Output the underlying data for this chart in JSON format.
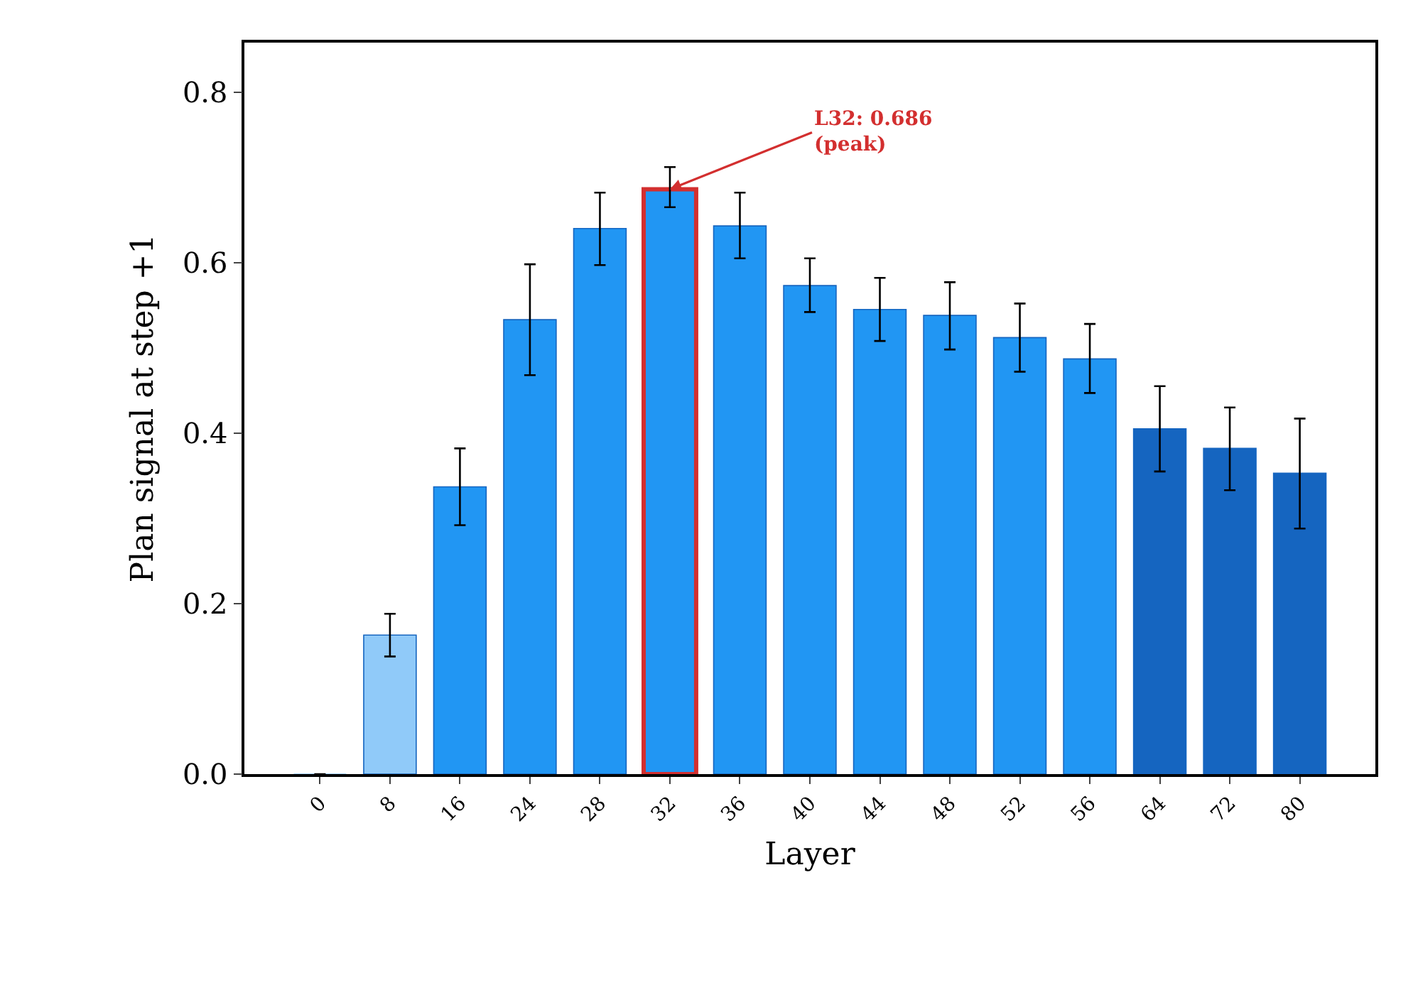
{
  "chart_data": {
    "type": "bar",
    "xlabel": "Layer",
    "ylabel": "Plan signal at step +1",
    "categories": [
      "0",
      "8",
      "16",
      "24",
      "28",
      "32",
      "36",
      "40",
      "44",
      "48",
      "52",
      "56",
      "64",
      "72",
      "80"
    ],
    "values": [
      0.0,
      0.163,
      0.337,
      0.533,
      0.64,
      0.686,
      0.643,
      0.573,
      0.545,
      0.538,
      0.512,
      0.487,
      0.405,
      0.382,
      0.353
    ],
    "colors": [
      "#90caf9",
      "#90caf9",
      "#2196f3",
      "#2196f3",
      "#2196f3",
      "#2196f3",
      "#2196f3",
      "#2196f3",
      "#2196f3",
      "#2196f3",
      "#2196f3",
      "#2196f3",
      "#1565c0",
      "#1565c0",
      "#1565c0"
    ],
    "errors": [
      null,
      [
        0.138,
        0.188
      ],
      [
        0.292,
        0.382
      ],
      [
        0.468,
        0.598
      ],
      [
        0.597,
        0.682
      ],
      [
        0.665,
        0.712
      ],
      [
        0.605,
        0.682
      ],
      [
        0.542,
        0.605
      ],
      [
        0.508,
        0.582
      ],
      [
        0.498,
        0.577
      ],
      [
        0.472,
        0.552
      ],
      [
        0.447,
        0.528
      ],
      [
        0.355,
        0.455
      ],
      [
        0.333,
        0.43
      ],
      [
        0.288,
        0.417
      ]
    ],
    "ylim": [
      0,
      0.858
    ],
    "yticks": [
      {
        "value": 0,
        "label": "0.0"
      },
      {
        "value": 0.2,
        "label": "0.2"
      },
      {
        "value": 0.4,
        "label": "0.4"
      },
      {
        "value": 0.6,
        "label": "0.6"
      },
      {
        "value": 0.8,
        "label": "0.8"
      }
    ],
    "grid": false,
    "annotations": [
      {
        "text": "L32: 0.686\n(peak)",
        "x": "32",
        "y": 0.686
      }
    ]
  }
}
